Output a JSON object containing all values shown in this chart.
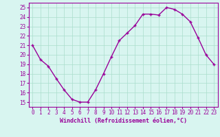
{
  "x": [
    0,
    1,
    2,
    3,
    4,
    5,
    6,
    7,
    8,
    9,
    10,
    11,
    12,
    13,
    14,
    15,
    16,
    17,
    18,
    19,
    20,
    21,
    22,
    23
  ],
  "y": [
    21,
    19.5,
    18.8,
    17.5,
    16.3,
    15.3,
    15.0,
    15.0,
    16.3,
    18.0,
    19.8,
    21.5,
    22.3,
    23.1,
    24.3,
    24.3,
    24.2,
    25.0,
    24.8,
    24.3,
    23.5,
    21.8,
    20.0,
    19.0
  ],
  "line_color": "#990099",
  "marker": "+",
  "marker_size": 3,
  "line_width": 1.0,
  "xlabel": "Windchill (Refroidissement éolien,°C)",
  "xlabel_fontsize": 6,
  "ylabel_ticks": [
    15,
    16,
    17,
    18,
    19,
    20,
    21,
    22,
    23,
    24,
    25
  ],
  "xticks": [
    0,
    1,
    2,
    3,
    4,
    5,
    6,
    7,
    8,
    9,
    10,
    11,
    12,
    13,
    14,
    15,
    16,
    17,
    18,
    19,
    20,
    21,
    22,
    23
  ],
  "ylim": [
    14.5,
    25.5
  ],
  "xlim": [
    -0.5,
    23.5
  ],
  "bg_color": "#d8f5f0",
  "grid_color": "#aaddcc",
  "tick_fontsize": 5.5,
  "spine_color": "#990099",
  "marker_edge_width": 1.0
}
